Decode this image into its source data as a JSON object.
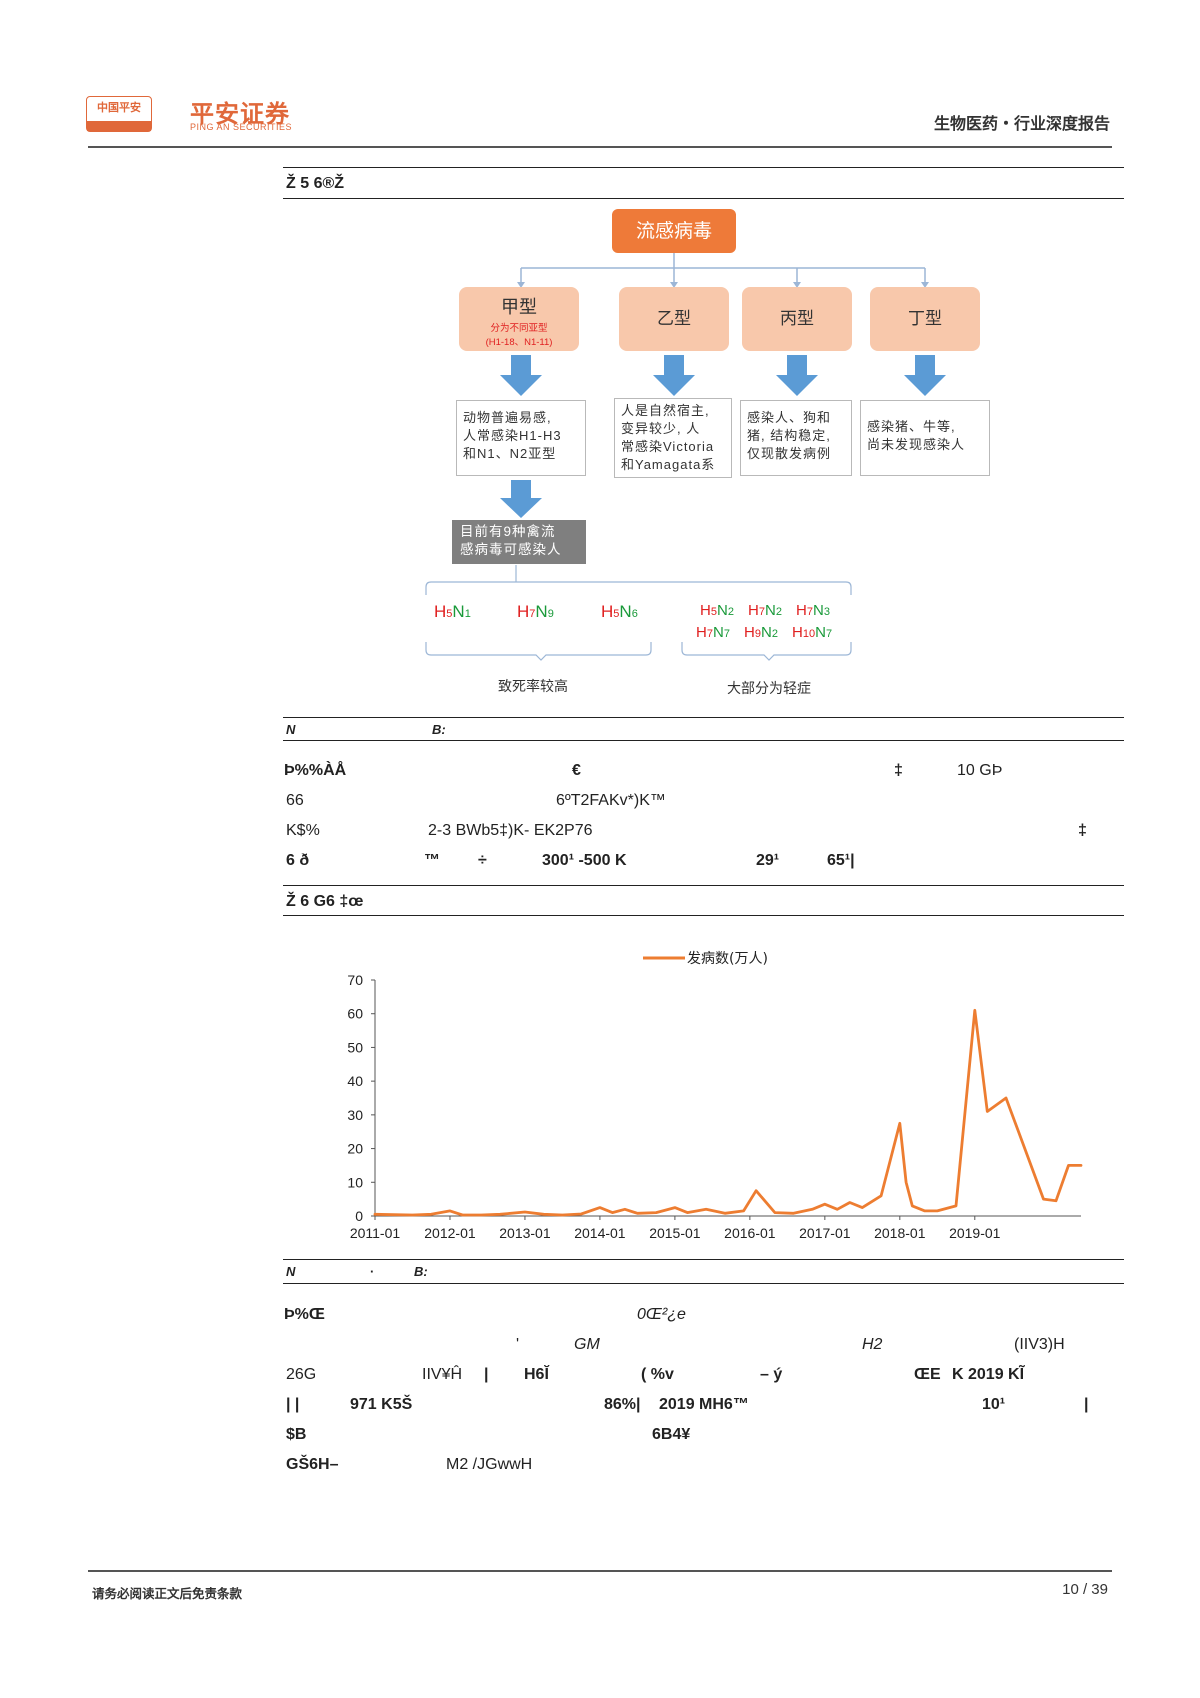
{
  "header": {
    "logo_box_text": "中国平安",
    "brand_cn": "平安证券",
    "brand_en": "PING AN SECURITIES",
    "report_tag": "生物医药・行业深度报告"
  },
  "figure5": {
    "caption_garbled": "Ž   5    6®Ž",
    "root": "流感病毒",
    "types": [
      {
        "name": "甲型",
        "note1": "分为不同亚型",
        "note2": "(H1-18、N1-11)"
      },
      {
        "name": "乙型"
      },
      {
        "name": "丙型"
      },
      {
        "name": "丁型"
      }
    ],
    "descriptions": [
      [
        "动物普遍易感,",
        "人常感染H1-H3",
        "和N1、N2亚型"
      ],
      [
        "人是自然宿主,",
        "变异较少, 人",
        "常感染Victoria",
        "和Yamagata系"
      ],
      [
        "感染人、狗和",
        "猪, 结构稳定,",
        "仅现散发病例"
      ],
      [
        "感染猪、牛等,",
        "尚未发现感染人"
      ]
    ],
    "gray_box": [
      "目前有9种禽流",
      "感病毒可感染人"
    ],
    "strains_high": [
      {
        "h": "H",
        "hn": "5",
        "n": "N",
        "nn": "1"
      },
      {
        "h": "H",
        "hn": "7",
        "n": "N",
        "nn": "9"
      },
      {
        "h": "H",
        "hn": "5",
        "n": "N",
        "nn": "6"
      }
    ],
    "strains_mild_row1": [
      {
        "h": "H",
        "hn": "5",
        "n": "N",
        "nn": "2"
      },
      {
        "h": "H",
        "hn": "7",
        "n": "N",
        "nn": "2"
      },
      {
        "h": "H",
        "hn": "7",
        "n": "N",
        "nn": "3"
      }
    ],
    "strains_mild_row2": [
      {
        "h": "H",
        "hn": "7",
        "n": "N",
        "nn": "7"
      },
      {
        "h": "H",
        "hn": "9",
        "n": "N",
        "nn": "2"
      },
      {
        "h": "H",
        "hn": "10",
        "n": "N",
        "nn": "7"
      }
    ],
    "label_high": "致死率较高",
    "label_mild": "大部分为轻症",
    "source_a": "N",
    "source_b": "B:"
  },
  "body1": {
    "line1": [
      "Þ%%ÀÅ",
      "€",
      "‡",
      "10 GÞ"
    ],
    "line2": [
      "66",
      "6ºT2FAKv*)K™"
    ],
    "line3": [
      "K$%",
      "2-3  BWb5‡)K- EK2P76",
      "‡"
    ],
    "line4": [
      "6   ð",
      "™",
      "÷",
      "300¹  -500 K",
      "29¹",
      "65¹|"
    ]
  },
  "figure6": {
    "caption_garbled": "Ž   6    G6        ‡œ",
    "source_a": "N",
    "source_b": "·",
    "source_c": "B:"
  },
  "chart_data": {
    "type": "line",
    "title": "",
    "xlabel": "",
    "ylabel": "",
    "legend": "top-center",
    "series": [
      {
        "name": "发病数(万人)",
        "color": "#ed7d31",
        "x": [
          "2011-01",
          "2011-04",
          "2011-07",
          "2011-10",
          "2012-01",
          "2012-03",
          "2012-06",
          "2012-09",
          "2013-01",
          "2013-04",
          "2013-07",
          "2013-10",
          "2014-01",
          "2014-03",
          "2014-05",
          "2014-07",
          "2014-10",
          "2015-01",
          "2015-03",
          "2015-06",
          "2015-09",
          "2015-12",
          "2016-02",
          "2016-05",
          "2016-08",
          "2016-11",
          "2017-01",
          "2017-03",
          "2017-05",
          "2017-07",
          "2017-10",
          "2018-01",
          "2018-02",
          "2018-03",
          "2018-05",
          "2018-07",
          "2018-10",
          "2019-01",
          "2019-03",
          "2019-06",
          "2019-09",
          "2019-12",
          "2020-02",
          "2020-04",
          "2020-06"
        ],
        "values": [
          0.5,
          0.4,
          0.3,
          0.5,
          1.5,
          0.3,
          0.3,
          0.5,
          1.2,
          0.5,
          0.3,
          0.6,
          2.5,
          1.0,
          2.0,
          0.8,
          1.0,
          2.5,
          1.0,
          2.0,
          0.8,
          1.5,
          7.5,
          1.0,
          0.8,
          2.0,
          3.5,
          2.0,
          4.0,
          2.5,
          6.0,
          27.5,
          10.0,
          3.0,
          1.5,
          1.5,
          3.0,
          61.0,
          31.0,
          35.0,
          20.0,
          5.0,
          4.5,
          15.0,
          15.0
        ]
      }
    ],
    "x_ticks": [
      "2011-01",
      "2012-01",
      "2013-01",
      "2014-01",
      "2015-01",
      "2016-01",
      "2017-01",
      "2018-01",
      "2019-01"
    ],
    "y_ticks": [
      0,
      10,
      20,
      30,
      40,
      50,
      60,
      70
    ],
    "ylim": [
      0,
      70
    ],
    "grid": false
  },
  "body2": {
    "line1": [
      "Þ%Œ",
      "0Œ²¿e"
    ],
    "line2": [
      "'",
      "GM",
      "H2",
      "(IIV3)H"
    ],
    "line3": [
      "26G",
      "IIV¥Ĥ",
      "|",
      "H6Ĭ",
      "( %v",
      "– ý",
      "ŒE",
      "K 2019  KĨ"
    ],
    "line4": [
      "|  |",
      "971 K5Š",
      "86%|",
      "2019 MH6™",
      "10¹",
      "|"
    ],
    "line5": [
      "$B",
      "6B4¥"
    ],
    "line6": [
      "GŠ6H–",
      "M2 /JGwwH"
    ]
  },
  "footer": {
    "disclaimer": "请务必阅读正文后免责条款",
    "page": "10 / 39"
  }
}
